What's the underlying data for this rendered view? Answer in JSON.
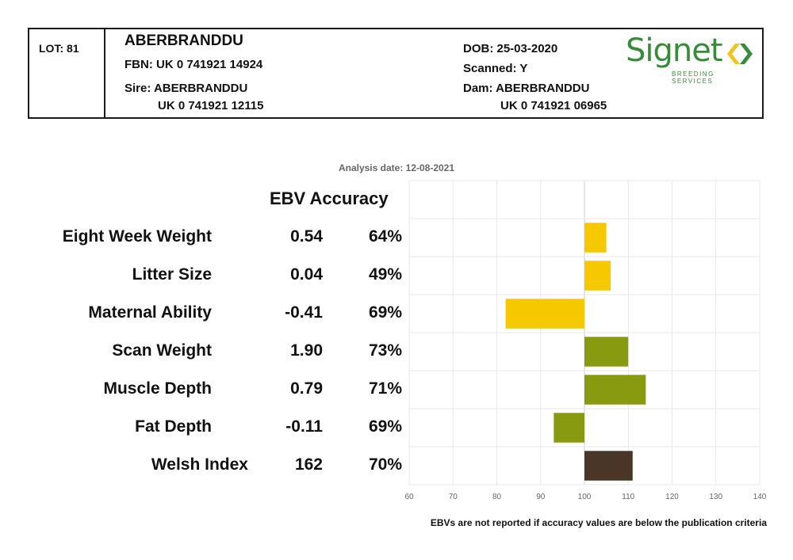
{
  "header": {
    "lot": "LOT: 81",
    "name": "ABERBRANDDU",
    "fbn": "FBN: UK 0 741921 14924",
    "sire_label": "Sire: ABERBRANDDU",
    "sire_id": "UK 0 741921 12115",
    "dob": "DOB: 25-03-2020",
    "scanned": "Scanned: Y",
    "dam_label": "Dam: ABERBRANDDU",
    "dam_id": "UK 0 741921 06965"
  },
  "logo": {
    "word": "Signet",
    "sub": "BREEDING SERVICES",
    "icon": "signet-chevrons-icon",
    "colors": {
      "green": "#3a8a3c",
      "yellow": "#f2c318"
    }
  },
  "analysis_date": "Analysis date: 12-08-2021",
  "columns": {
    "heading": "EBV Accuracy"
  },
  "chart_data": {
    "type": "bar",
    "orientation": "horizontal",
    "categories": [
      "Eight Week Weight",
      "Litter Size",
      "Maternal Ability",
      "Scan Weight",
      "Muscle Depth",
      "Fat Depth",
      "Welsh Index"
    ],
    "ebv": [
      "0.54",
      "0.04",
      "-0.41",
      "1.90",
      "0.79",
      "-0.11",
      "162"
    ],
    "accuracy": [
      "64%",
      "49%",
      "69%",
      "73%",
      "71%",
      "69%",
      "70%"
    ],
    "values": [
      105,
      106,
      82,
      110,
      114,
      93,
      111
    ],
    "baseline": 100,
    "xlim": [
      60,
      140
    ],
    "xticks": [
      "60",
      "70",
      "80",
      "90",
      "100",
      "110",
      "120",
      "130",
      "140"
    ],
    "bar_colors": [
      "#f5c800",
      "#f5c800",
      "#f5c800",
      "#879a10",
      "#879a10",
      "#879a10",
      "#4a3626"
    ],
    "grid": true
  },
  "footnote": "EBVs are not reported if accuracy values are below the publication criteria"
}
